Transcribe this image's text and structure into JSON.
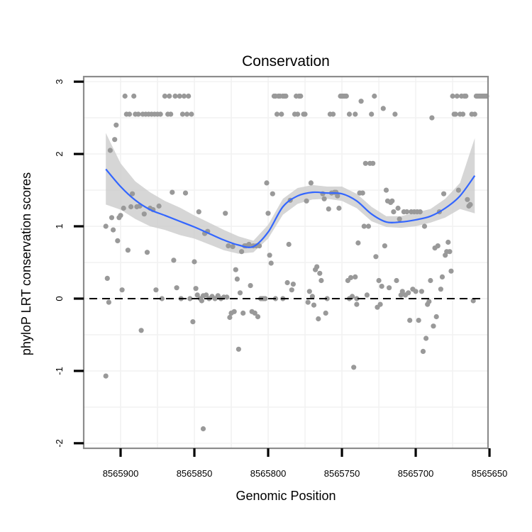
{
  "chart_data": {
    "type": "scatter",
    "title": "Conservation",
    "xlabel": "Genomic Position",
    "ylabel": "phyloP LRT conservation scores",
    "x_reversed": true,
    "xlim": [
      8565925,
      8565651
    ],
    "ylim": [
      -2.07,
      3.07
    ],
    "x_ticks": [
      8565900,
      8565850,
      8565800,
      8565750,
      8565700,
      8565650
    ],
    "x_tick_labels": [
      "8565900",
      "8565850",
      "8565800",
      "8565750",
      "8565700",
      "8565650"
    ],
    "y_ticks": [
      -2,
      -1,
      0,
      1,
      2,
      3
    ],
    "y_tick_labels": [
      "-2",
      "-1",
      "0",
      "1",
      "2",
      "3"
    ],
    "grid": true,
    "reference_line": {
      "y": 0,
      "style": "dashed",
      "color": "#000000"
    },
    "point_color": "#999999",
    "smooth_color": "#3366ff",
    "ribbon_color": "#cccccc",
    "series": [
      {
        "type": "scatter",
        "points": [
          [
            8565910,
            -1.07
          ],
          [
            8565910,
            1.0
          ],
          [
            8565909,
            0.28
          ],
          [
            8565908,
            -0.05
          ],
          [
            8565907,
            2.05
          ],
          [
            8565906,
            1.12
          ],
          [
            8565905,
            0.95
          ],
          [
            8565904,
            2.2
          ],
          [
            8565903,
            2.4
          ],
          [
            8565902,
            0.8
          ],
          [
            8565901,
            1.12
          ],
          [
            8565900,
            1.15
          ],
          [
            8565899,
            0.12
          ],
          [
            8565898,
            1.25
          ],
          [
            8565897,
            2.8
          ],
          [
            8565896,
            2.55
          ],
          [
            8565895,
            0.67
          ],
          [
            8565894,
            2.55
          ],
          [
            8565893,
            1.27
          ],
          [
            8565892,
            1.45
          ],
          [
            8565891,
            2.8
          ],
          [
            8565890,
            2.55
          ],
          [
            8565889,
            1.27
          ],
          [
            8565888,
            2.55
          ],
          [
            8565887,
            1.28
          ],
          [
            8565886,
            -0.44
          ],
          [
            8565885,
            2.55
          ],
          [
            8565884,
            1.17
          ],
          [
            8565883,
            2.55
          ],
          [
            8565882,
            0.64
          ],
          [
            8565881,
            2.55
          ],
          [
            8565880,
            1.25
          ],
          [
            8565879,
            2.55
          ],
          [
            8565878,
            1.23
          ],
          [
            8565877,
            2.55
          ],
          [
            8565876,
            0.12
          ],
          [
            8565875,
            2.55
          ],
          [
            8565874,
            1.28
          ],
          [
            8565873,
            2.55
          ],
          [
            8565872,
            0.0
          ],
          [
            8565870,
            2.8
          ],
          [
            8565868,
            2.55
          ],
          [
            8565867,
            2.8
          ],
          [
            8565866,
            2.55
          ],
          [
            8565865,
            1.47
          ],
          [
            8565864,
            0.53
          ],
          [
            8565863,
            2.8
          ],
          [
            8565862,
            0.15
          ],
          [
            8565860,
            2.8
          ],
          [
            8565859,
            0.0
          ],
          [
            8565858,
            2.55
          ],
          [
            8565857,
            2.8
          ],
          [
            8565856,
            1.46
          ],
          [
            8565855,
            2.55
          ],
          [
            8565854,
            2.8
          ],
          [
            8565853,
            0.0
          ],
          [
            8565852,
            2.55
          ],
          [
            8565851,
            -0.32
          ],
          [
            8565850,
            0.51
          ],
          [
            8565849,
            0.14
          ],
          [
            8565848,
            0.05
          ],
          [
            8565847,
            1.2
          ],
          [
            8565846,
            0.0
          ],
          [
            8565845,
            -0.03
          ],
          [
            8565844,
            0.04
          ],
          [
            8565843,
            0.9
          ],
          [
            8565842,
            0.05
          ],
          [
            8565841,
            0.93
          ],
          [
            8565840,
            0.0
          ],
          [
            8565838,
            0.03
          ],
          [
            8565836,
            0.0
          ],
          [
            8565834,
            0.04
          ],
          [
            8565832,
            0.0
          ],
          [
            8565830,
            0.02
          ],
          [
            8565829,
            1.18
          ],
          [
            8565828,
            0.02
          ],
          [
            8565827,
            0.73
          ],
          [
            8565826,
            -0.26
          ],
          [
            8565825,
            -0.2
          ],
          [
            8565824,
            0.72
          ],
          [
            8565823,
            -0.18
          ],
          [
            8565822,
            0.4
          ],
          [
            8565821,
            0.27
          ],
          [
            8565820,
            -0.7
          ],
          [
            8565819,
            0.08
          ],
          [
            8565818,
            0.65
          ],
          [
            8565817,
            -0.2
          ],
          [
            8565816,
            0.73
          ],
          [
            8565815,
            0.73
          ],
          [
            8565813,
            0.75
          ],
          [
            8565812,
            0.18
          ],
          [
            8565811,
            -0.18
          ],
          [
            8565810,
            0.73
          ],
          [
            8565809,
            -0.2
          ],
          [
            8565808,
            0.73
          ],
          [
            8565807,
            -0.25
          ],
          [
            8565806,
            0.73
          ],
          [
            8565805,
            0.0
          ],
          [
            8565804,
            0.0
          ],
          [
            8565803,
            0.0
          ],
          [
            8565802,
            0.0
          ],
          [
            8565801,
            1.6
          ],
          [
            8565800,
            1.18
          ],
          [
            8565799,
            0.6
          ],
          [
            8565798,
            0.49
          ],
          [
            8565797,
            1.45
          ],
          [
            8565796,
            2.8
          ],
          [
            8565795,
            2.8
          ],
          [
            8565794,
            2.55
          ],
          [
            8565793,
            2.8
          ],
          [
            8565792,
            2.8
          ],
          [
            8565791,
            2.55
          ],
          [
            8565790,
            2.8
          ],
          [
            8565789,
            2.8
          ],
          [
            8565788,
            2.8
          ],
          [
            8565787,
            0.22
          ],
          [
            8565786,
            0.75
          ],
          [
            8565785,
            1.36
          ],
          [
            8565784,
            0.12
          ],
          [
            8565783,
            0.2
          ],
          [
            8565782,
            2.55
          ],
          [
            8565781,
            2.8
          ],
          [
            8565780,
            2.55
          ],
          [
            8565779,
            2.8
          ],
          [
            8565778,
            2.8
          ],
          [
            8565776,
            2.55
          ],
          [
            8565775,
            2.55
          ],
          [
            8565774,
            1.35
          ],
          [
            8565773,
            -0.05
          ],
          [
            8565772,
            0.1
          ],
          [
            8565771,
            1.6
          ],
          [
            8565770,
            0.03
          ],
          [
            8565769,
            -0.09
          ],
          [
            8565768,
            0.4
          ],
          [
            8565767,
            0.44
          ],
          [
            8565766,
            -0.28
          ],
          [
            8565765,
            0.35
          ],
          [
            8565764,
            0.25
          ],
          [
            8565763,
            1.45
          ],
          [
            8565762,
            1.38
          ],
          [
            8565761,
            -0.2
          ],
          [
            8565760,
            0.0
          ],
          [
            8565759,
            1.24
          ],
          [
            8565758,
            2.55
          ],
          [
            8565757,
            1.46
          ],
          [
            8565756,
            2.55
          ],
          [
            8565755,
            1.47
          ],
          [
            8565754,
            1.47
          ],
          [
            8565753,
            1.42
          ],
          [
            8565752,
            1.25
          ],
          [
            8565751,
            2.8
          ],
          [
            8565750,
            2.8
          ],
          [
            8565749,
            2.8
          ],
          [
            8565748,
            2.8
          ],
          [
            8565747,
            2.8
          ],
          [
            8565746,
            0.25
          ],
          [
            8565745,
            2.55
          ],
          [
            8565744,
            0.29
          ],
          [
            8565743,
            0.03
          ],
          [
            8565742,
            -0.95
          ],
          [
            8565741,
            2.55
          ],
          [
            8565740,
            -0.08
          ],
          [
            8565739,
            0.77
          ],
          [
            8565738,
            1.46
          ],
          [
            8565737,
            2.73
          ],
          [
            8565736,
            1.46
          ],
          [
            8565735,
            1.0
          ],
          [
            8565734,
            1.87
          ],
          [
            8565733,
            0.05
          ],
          [
            8565732,
            1.0
          ],
          [
            8565731,
            1.87
          ],
          [
            8565730,
            2.55
          ],
          [
            8565729,
            1.87
          ],
          [
            8565728,
            2.8
          ],
          [
            8565727,
            0.58
          ],
          [
            8565726,
            -0.12
          ],
          [
            8565725,
            0.25
          ],
          [
            8565724,
            -0.08
          ],
          [
            8565723,
            0.17
          ],
          [
            8565722,
            2.63
          ],
          [
            8565721,
            0.73
          ],
          [
            8565720,
            1.5
          ],
          [
            8565719,
            1.35
          ],
          [
            8565718,
            0.15
          ],
          [
            8565717,
            1.33
          ],
          [
            8565716,
            1.35
          ],
          [
            8565715,
            1.2
          ],
          [
            8565714,
            2.55
          ],
          [
            8565713,
            0.25
          ],
          [
            8565712,
            1.25
          ],
          [
            8565711,
            1.1
          ],
          [
            8565710,
            0.05
          ],
          [
            8565709,
            0.1
          ],
          [
            8565708,
            1.2
          ],
          [
            8565707,
            0.05
          ],
          [
            8565706,
            1.2
          ],
          [
            8565705,
            0.08
          ],
          [
            8565704,
            -0.3
          ],
          [
            8565703,
            1.2
          ],
          [
            8565702,
            0.13
          ],
          [
            8565701,
            1.2
          ],
          [
            8565700,
            0.1
          ],
          [
            8565699,
            1.2
          ],
          [
            8565698,
            -0.3
          ],
          [
            8565697,
            1.2
          ],
          [
            8565696,
            0.1
          ],
          [
            8565695,
            -0.73
          ],
          [
            8565694,
            1.0
          ],
          [
            8565693,
            -0.55
          ],
          [
            8565692,
            -0.08
          ],
          [
            8565691,
            -0.04
          ],
          [
            8565690,
            0.25
          ],
          [
            8565689,
            2.5
          ],
          [
            8565688,
            -0.38
          ],
          [
            8565687,
            0.7
          ],
          [
            8565686,
            -0.25
          ],
          [
            8565685,
            0.73
          ],
          [
            8565684,
            1.2
          ],
          [
            8565683,
            0.13
          ],
          [
            8565682,
            0.3
          ],
          [
            8565681,
            1.45
          ],
          [
            8565680,
            0.6
          ],
          [
            8565679,
            0.65
          ],
          [
            8565678,
            0.78
          ],
          [
            8565677,
            0.65
          ],
          [
            8565676,
            0.38
          ],
          [
            8565675,
            2.8
          ],
          [
            8565674,
            2.55
          ],
          [
            8565673,
            2.55
          ],
          [
            8565672,
            2.8
          ],
          [
            8565671,
            1.5
          ],
          [
            8565670,
            2.55
          ],
          [
            8565669,
            2.8
          ],
          [
            8565668,
            2.55
          ],
          [
            8565667,
            2.8
          ],
          [
            8565666,
            2.8
          ],
          [
            8565665,
            1.37
          ],
          [
            8565664,
            1.28
          ],
          [
            8565663,
            1.3
          ],
          [
            8565662,
            2.55
          ],
          [
            8565661,
            -0.03
          ],
          [
            8565660,
            2.55
          ],
          [
            8565659,
            2.8
          ],
          [
            8565658,
            2.8
          ],
          [
            8565657,
            2.8
          ],
          [
            8565656,
            2.8
          ],
          [
            8565655,
            2.8
          ],
          [
            8565654,
            2.8
          ],
          [
            8565653,
            2.8
          ],
          [
            8565652,
            2.8
          ],
          [
            8565844,
            -1.8
          ],
          [
            8565790,
            0.0
          ],
          [
            8565795,
            0.0
          ],
          [
            8565745,
            0.0
          ],
          [
            8565741,
            0.3
          ],
          [
            8565740,
            0.0
          ]
        ]
      },
      {
        "type": "smooth",
        "x": [
          8565910,
          8565900,
          8565890,
          8565880,
          8565870,
          8565860,
          8565850,
          8565840,
          8565830,
          8565820,
          8565810,
          8565800,
          8565790,
          8565780,
          8565770,
          8565760,
          8565750,
          8565740,
          8565730,
          8565720,
          8565710,
          8565700,
          8565690,
          8565680,
          8565670,
          8565660
        ],
        "y": [
          1.79,
          1.55,
          1.36,
          1.23,
          1.15,
          1.07,
          0.99,
          0.9,
          0.81,
          0.74,
          0.72,
          0.92,
          1.27,
          1.42,
          1.47,
          1.46,
          1.45,
          1.35,
          1.17,
          1.06,
          1.06,
          1.09,
          1.14,
          1.25,
          1.42,
          1.7
        ],
        "lower": [
          1.3,
          1.23,
          1.1,
          1.0,
          0.95,
          0.88,
          0.83,
          0.75,
          0.67,
          0.62,
          0.64,
          0.83,
          1.16,
          1.31,
          1.37,
          1.38,
          1.35,
          1.25,
          1.07,
          0.99,
          0.98,
          1.0,
          1.05,
          1.12,
          1.24,
          1.18
        ],
        "upper": [
          2.29,
          1.87,
          1.62,
          1.47,
          1.35,
          1.26,
          1.15,
          1.05,
          0.95,
          0.86,
          0.8,
          1.02,
          1.38,
          1.53,
          1.57,
          1.55,
          1.55,
          1.45,
          1.27,
          1.14,
          1.14,
          1.19,
          1.24,
          1.38,
          1.6,
          2.22
        ]
      }
    ]
  }
}
